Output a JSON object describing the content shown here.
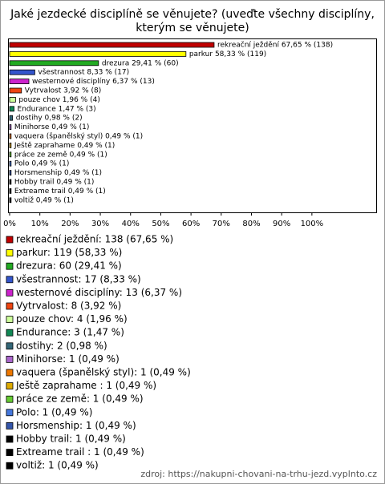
{
  "chart_data": {
    "type": "bar",
    "title": [
      "Jaké jezdecké disciplíně se věnujete? (uveďte všechny disciplíny,",
      "kterým se věnujete)"
    ],
    "values": [
      67.65,
      58.33,
      29.41,
      8.33,
      6.37,
      3.92,
      1.96,
      1.47,
      0.98,
      0.49,
      0.49,
      0.49,
      0.49,
      0.49,
      0.49,
      0.49,
      0.49,
      0.49
    ],
    "value_labels": [
      "rekreační ježdění 67,65 % (138)",
      "parkur 58,33 % (119)",
      "drezura 29,41 % (60)",
      "všestrannost 8,33 % (17)",
      "westernové disciplíny 6,37 % (13)",
      "Vytrvalost 3,92 % (8)",
      "pouze chov 1,96 % (4)",
      "Endurance 1,47 % (3)",
      "dostihy 0,98 % (2)",
      "Minihorse 0,49 % (1)",
      "vaquera (španělský styl) 0,49 % (1)",
      "Ještě zaprahame  0,49 % (1)",
      "práce ze země 0,49 % (1)",
      "Polo 0,49 % (1)",
      "Horsmenship 0,49 % (1)",
      "Hobby trail 0,49 % (1)",
      "Extreame trail  0,49 % (1)",
      "voltiž 0,49 % (1)"
    ],
    "legend": [
      "rekreační ježdění: 138 (67,65 %)",
      "parkur: 119 (58,33 %)",
      "drezura: 60 (29,41 %)",
      "všestrannost: 17 (8,33 %)",
      "westernové disciplíny: 13 (6,37 %)",
      "Vytrvalost: 8 (3,92 %)",
      "pouze chov: 4 (1,96 %)",
      "Endurance: 3 (1,47 %)",
      "dostihy: 2 (0,98 %)",
      "Minihorse: 1 (0,49 %)",
      "vaquera (španělský styl): 1 (0,49 %)",
      "Ještě zaprahame : 1 (0,49 %)",
      "práce ze země: 1 (0,49 %)",
      "Polo: 1 (0,49 %)",
      "Horsmenship: 1 (0,49 %)",
      "Hobby trail: 1 (0,49 %)",
      "Extreame trail : 1 (0,49 %)",
      "voltiž: 1 (0,49 %)"
    ],
    "colors": [
      "#c00000",
      "#ffff00",
      "#22aa22",
      "#3355cc",
      "#cc22cc",
      "#ee4411",
      "#ccff99",
      "#118855",
      "#336677",
      "#aa66cc",
      "#ee7700",
      "#ddaa00",
      "#66cc33",
      "#4477dd",
      "#3355aa",
      "#000000",
      "#000000",
      "#000000"
    ],
    "xlim": [
      0,
      121
    ],
    "xticks": [
      {
        "value": 0,
        "label": "0%"
      },
      {
        "value": 10,
        "label": "10%"
      },
      {
        "value": 20,
        "label": "20%"
      },
      {
        "value": 30,
        "label": "30%"
      },
      {
        "value": 40,
        "label": "40%"
      },
      {
        "value": 50,
        "label": "50%"
      },
      {
        "value": 60,
        "label": "60%"
      },
      {
        "value": 70,
        "label": "70%"
      },
      {
        "value": 80,
        "label": "80%"
      },
      {
        "value": 90,
        "label": "90%"
      },
      {
        "value": 100,
        "label": "100%"
      }
    ],
    "source": "zdroj: https://nakupni-chovani-na-trhu-jezd.vyplnto.cz"
  }
}
